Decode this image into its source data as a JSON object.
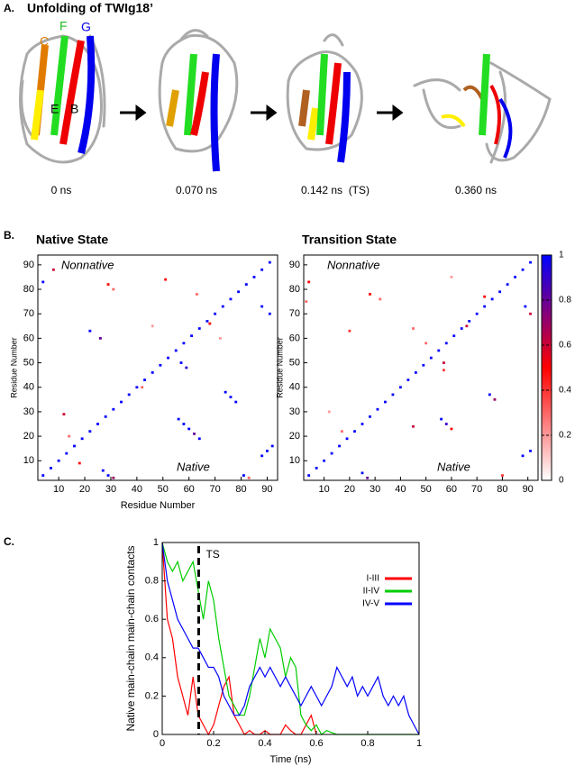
{
  "panel_a": {
    "label": "A.",
    "title": "Unfolding of TWIg18’",
    "strands": [
      "C",
      "F",
      "G",
      "E",
      "B"
    ],
    "times": [
      "0 ns",
      "0.070 ns",
      "0.142 ns  (TS)",
      "0.360 ns"
    ]
  },
  "panel_b": {
    "label": "B."
  },
  "panel_c": {
    "label": "C."
  },
  "chart_data": [
    {
      "type": "contact_map",
      "title": "Native State",
      "xlabel": "Residue Number",
      "ylabel": "Residue Number",
      "annotations": [
        "Nonnative",
        "Native"
      ],
      "xlim": [
        2,
        94
      ],
      "ylim": [
        2,
        94
      ],
      "xticks": [
        10,
        20,
        30,
        40,
        50,
        60,
        70,
        80,
        90
      ],
      "yticks": [
        10,
        20,
        30,
        40,
        50,
        60,
        70,
        80,
        90
      ],
      "x": [
        4,
        7,
        10,
        13,
        16,
        19,
        22,
        25,
        28,
        31,
        34,
        37,
        40,
        43,
        46,
        49,
        52,
        55,
        58,
        61,
        64,
        67,
        70,
        73,
        76,
        79,
        82,
        85,
        88,
        91,
        56,
        58,
        60,
        62,
        64,
        74,
        76,
        78,
        27,
        29,
        31,
        88,
        90,
        92,
        81,
        83,
        57,
        59,
        88,
        91,
        12,
        22,
        26,
        29,
        31,
        4,
        8,
        42,
        46,
        51,
        63,
        68,
        18,
        14,
        72
      ],
      "y": [
        4,
        7,
        10,
        13,
        16,
        19,
        22,
        25,
        28,
        31,
        34,
        37,
        40,
        43,
        46,
        49,
        52,
        55,
        58,
        61,
        64,
        67,
        70,
        73,
        76,
        79,
        82,
        85,
        88,
        91,
        27,
        25,
        23,
        21,
        19,
        38,
        36,
        34,
        6,
        4,
        3,
        12,
        14,
        16,
        4,
        3,
        50,
        48,
        73,
        70,
        29,
        63,
        60,
        82,
        80,
        83,
        88,
        40,
        65,
        84,
        78,
        66,
        9,
        20,
        60
      ],
      "values": [
        1,
        1,
        1,
        1,
        1,
        1,
        1,
        1,
        1,
        1,
        1,
        1,
        1,
        1,
        1,
        1,
        1,
        1,
        1,
        1,
        1,
        1,
        1,
        1,
        1,
        1,
        1,
        1,
        1,
        1,
        1,
        1,
        1,
        0.8,
        1,
        1,
        1,
        1,
        1,
        1,
        0.7,
        1,
        1,
        1,
        1,
        0.3,
        1,
        0.9,
        1,
        1,
        0.6,
        1,
        0.8,
        0.5,
        0.3,
        1,
        0.6,
        0.3,
        0.2,
        0.5,
        0.3,
        0.5,
        0.5,
        0.3,
        0.2
      ]
    },
    {
      "type": "contact_map",
      "title": "Transition State",
      "ylabel": "Residue Number",
      "annotations": [
        "Nonnative",
        "Native"
      ],
      "xlim": [
        2,
        94
      ],
      "ylim": [
        2,
        94
      ],
      "xticks": [
        10,
        20,
        30,
        40,
        50,
        60,
        70,
        80,
        90
      ],
      "yticks": [
        10,
        20,
        30,
        40,
        50,
        60,
        70,
        80,
        90
      ],
      "x": [
        4,
        7,
        10,
        13,
        16,
        19,
        22,
        25,
        28,
        31,
        34,
        37,
        40,
        43,
        46,
        49,
        52,
        55,
        58,
        61,
        64,
        67,
        70,
        73,
        76,
        79,
        82,
        85,
        88,
        91,
        56,
        58,
        60,
        75,
        77,
        25,
        27,
        88,
        91,
        80,
        57,
        89,
        91,
        4,
        3,
        20,
        28,
        32,
        45,
        50,
        60,
        17,
        12,
        66,
        73,
        45,
        57
      ],
      "y": [
        4,
        7,
        10,
        13,
        16,
        19,
        22,
        25,
        28,
        31,
        34,
        37,
        40,
        43,
        46,
        49,
        52,
        55,
        58,
        61,
        64,
        67,
        70,
        73,
        76,
        79,
        82,
        85,
        88,
        91,
        27,
        25,
        23,
        37,
        35,
        5,
        3,
        12,
        14,
        4,
        50,
        73,
        70,
        83,
        75,
        63,
        78,
        76,
        64,
        58,
        85,
        22,
        30,
        65,
        77,
        24,
        47
      ],
      "values": [
        1,
        1,
        1,
        1,
        1,
        1,
        1,
        1,
        1,
        1,
        1,
        1,
        1,
        1,
        1,
        1,
        1,
        1,
        1,
        1,
        1,
        1,
        1,
        1,
        1,
        1,
        1,
        1,
        1,
        1,
        1,
        0.9,
        0.5,
        1,
        0.7,
        1,
        0.8,
        1,
        1,
        0.4,
        0.6,
        1,
        0.6,
        0.5,
        0.3,
        0.4,
        0.5,
        0.3,
        0.3,
        0.3,
        0.2,
        0.3,
        0.2,
        0.6,
        0.5,
        0.6,
        0.4
      ],
      "colorbar": {
        "colors": [
          "#ffffff",
          "#ff0000",
          "#0000ff"
        ],
        "ticks": [
          0,
          0.2,
          0.4,
          0.6,
          0.8,
          1
        ]
      }
    },
    {
      "type": "line",
      "xlabel": "Time (ns)",
      "ylabel": "Native main-chain main-chain contacts",
      "annotation": {
        "text": "TS",
        "x": 0.142
      },
      "legend": "upper right",
      "xlim": [
        0,
        1
      ],
      "ylim": [
        0,
        1
      ],
      "xticks": [
        0,
        0.2,
        0.4,
        0.6,
        0.8,
        1
      ],
      "yticks": [
        0,
        0.2,
        0.4,
        0.6,
        0.8,
        1
      ],
      "x": [
        0,
        0.02,
        0.04,
        0.06,
        0.08,
        0.1,
        0.12,
        0.14,
        0.16,
        0.18,
        0.2,
        0.22,
        0.24,
        0.26,
        0.28,
        0.3,
        0.32,
        0.34,
        0.36,
        0.38,
        0.4,
        0.42,
        0.44,
        0.46,
        0.48,
        0.5,
        0.52,
        0.54,
        0.56,
        0.58,
        0.6,
        0.62,
        0.64,
        0.66,
        0.68,
        0.7,
        0.72,
        0.74,
        0.76,
        0.78,
        0.8,
        0.82,
        0.84,
        0.86,
        0.88,
        0.9,
        0.92,
        0.94,
        0.96,
        0.98,
        1
      ],
      "series": [
        {
          "name": "I-III",
          "color": "#ff0000",
          "values": [
            1,
            0.6,
            0.5,
            0.3,
            0.2,
            0.1,
            0.3,
            0.1,
            0.05,
            0,
            0.05,
            0.15,
            0.25,
            0.3,
            0.1,
            0.05,
            0,
            0.02,
            0,
            0,
            0.02,
            0,
            0,
            0,
            0.05,
            0.02,
            0,
            0,
            0.05,
            0.1,
            0,
            null,
            null,
            null,
            null,
            null,
            null,
            null,
            null,
            null,
            null,
            null,
            null,
            null,
            null,
            null,
            null,
            null,
            null,
            null,
            null
          ]
        },
        {
          "name": "II-IV",
          "color": "#00cc00",
          "values": [
            1,
            0.9,
            0.85,
            0.9,
            0.8,
            0.85,
            0.9,
            0.75,
            0.6,
            0.8,
            0.7,
            0.5,
            0.35,
            0.2,
            0.15,
            0.1,
            0.1,
            0.2,
            0.35,
            0.5,
            0.4,
            0.55,
            0.5,
            0.45,
            0.3,
            0.4,
            0.35,
            0.1,
            0.05,
            0.02,
            0.05,
            0,
            0.02,
            0.01,
            0,
            0,
            0,
            0,
            0,
            0,
            0,
            0,
            0,
            0,
            0,
            0,
            0,
            0,
            0,
            0,
            0
          ]
        },
        {
          "name": "IV-V",
          "color": "#0000ff",
          "values": [
            1,
            0.8,
            0.7,
            0.6,
            0.55,
            0.5,
            0.45,
            0.45,
            0.4,
            0.35,
            0.35,
            0.3,
            0.2,
            0.15,
            0.1,
            0.1,
            0.15,
            0.25,
            0.3,
            0.35,
            0.3,
            0.35,
            0.3,
            0.25,
            0.3,
            0.25,
            0.2,
            0.15,
            0.2,
            0.25,
            0.2,
            0.15,
            0.2,
            0.25,
            0.35,
            0.3,
            0.25,
            0.3,
            0.2,
            0.25,
            0.2,
            0.25,
            0.3,
            0.2,
            0.15,
            0.2,
            0.15,
            0.2,
            0.1,
            0.05,
            0
          ]
        }
      ]
    }
  ]
}
